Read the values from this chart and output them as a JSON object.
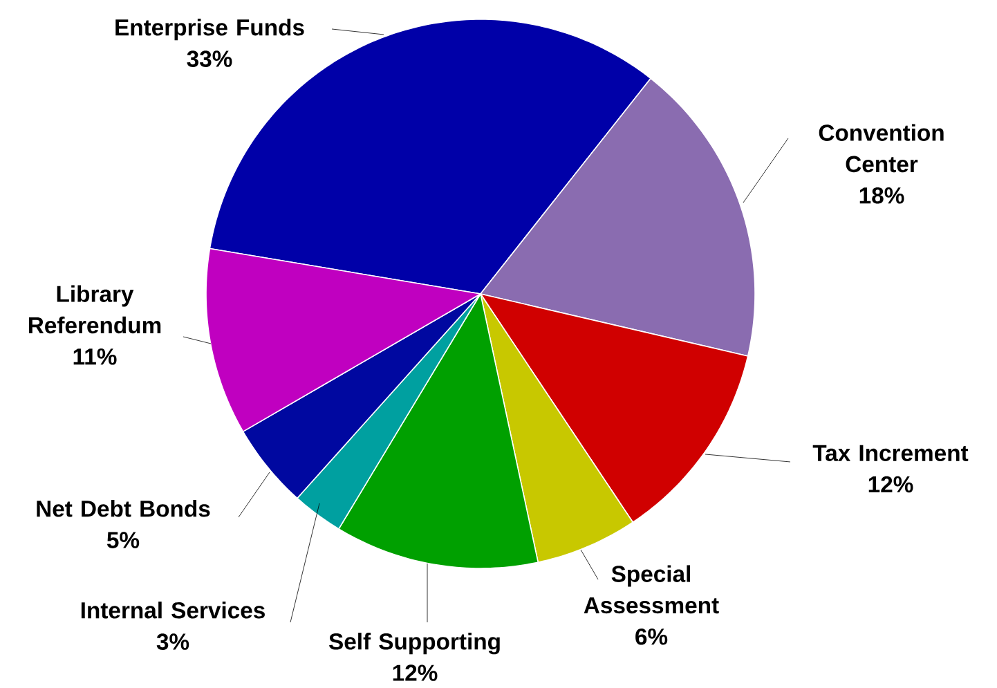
{
  "chart_data": {
    "type": "pie",
    "categories": [
      "Enterprise Funds",
      "Convention Center",
      "Tax Increment",
      "Special Assessment",
      "Self Supporting",
      "Internal Services",
      "Net Debt Bonds",
      "Library Referendum"
    ],
    "values": [
      33,
      18,
      12,
      6,
      12,
      3,
      5,
      11
    ],
    "value_labels": [
      "33%",
      "18%",
      "12%",
      "6%",
      "12%",
      "3%",
      "5%",
      "11%"
    ],
    "colors": [
      "#0000a8",
      "#8a6cb0",
      "#d00000",
      "#c8c800",
      "#00a000",
      "#00a0a0",
      "#0008a0",
      "#c000c0"
    ]
  }
}
